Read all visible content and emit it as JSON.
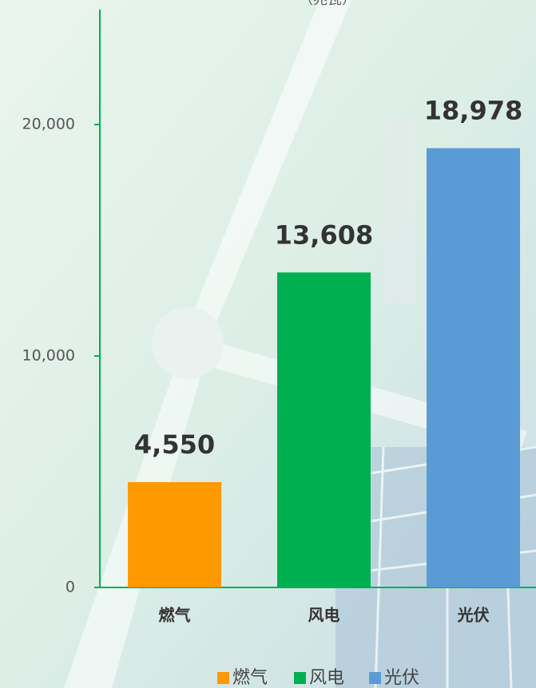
{
  "chart_data": {
    "type": "bar",
    "y_label": "（兆瓦）",
    "categories": [
      "燃气",
      "风电",
      "光伏"
    ],
    "values": [
      4550,
      13608,
      18978
    ],
    "value_labels": [
      "4,550",
      "13,608",
      "18,978"
    ],
    "colors": [
      "#ff9900",
      "#00b050",
      "#5b9bd5"
    ],
    "ylim": [
      0,
      25000
    ],
    "yticks": [
      0,
      {
        "value": 10000,
        "label": "10,000"
      },
      {
        "value": 20000,
        "label": "20,000"
      }
    ],
    "legend": "bottom"
  }
}
